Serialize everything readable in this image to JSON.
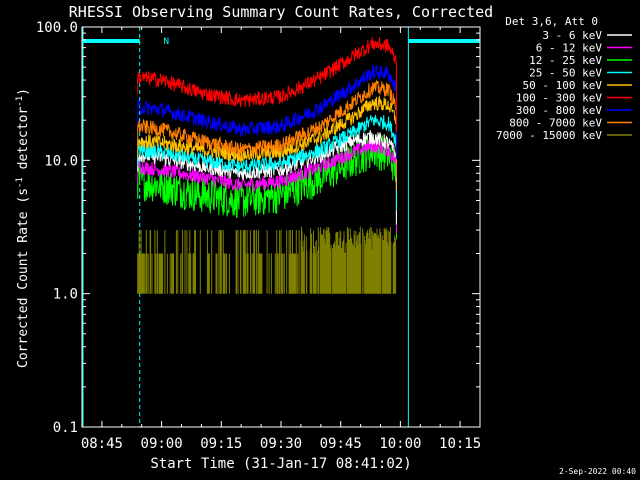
{
  "chart_data": {
    "type": "line",
    "title": "RHESSI Observing Summary Count Rates, Corrected",
    "xlabel": "Start Time (31-Jan-17 08:41:02)",
    "ylabel": "Corrected Count Rate (s",
    "ylabel_sup1": "-1",
    "ylabel_mid": " detector",
    "ylabel_sup2": "-1",
    "ylabel_end": ")",
    "yscale": "log",
    "ylim": [
      0.1,
      100.0
    ],
    "xlim_minutes": [
      -5.0,
      95.0
    ],
    "x_ticks": [
      {
        "label": "08:45",
        "minutes": 0
      },
      {
        "label": "09:00",
        "minutes": 15
      },
      {
        "label": "09:15",
        "minutes": 30
      },
      {
        "label": "09:30",
        "minutes": 45
      },
      {
        "label": "09:45",
        "minutes": 60
      },
      {
        "label": "10:00",
        "minutes": 75
      },
      {
        "label": "10:15",
        "minutes": 90
      }
    ],
    "y_ticks": [
      {
        "label": "0.1",
        "value": 0.1
      },
      {
        "label": "1.0",
        "value": 1.0
      },
      {
        "label": "10.0",
        "value": 10.0
      },
      {
        "label": "100.0",
        "value": 100.0
      }
    ],
    "legend_header": "Det 3,6, Att 0",
    "series": [
      {
        "name": "3 - 6 keV",
        "color": "#ffffff",
        "x": [
          9,
          15,
          25,
          35,
          45,
          55,
          63,
          68,
          72,
          74
        ],
        "values": [
          11,
          10.5,
          9,
          8,
          8.5,
          11,
          14,
          15,
          13.5,
          11
        ]
      },
      {
        "name": "6 - 12 keV",
        "color": "#ff00ff",
        "x": [
          9,
          15,
          25,
          35,
          45,
          55,
          63,
          68,
          72,
          74
        ],
        "values": [
          9,
          8.5,
          7.5,
          6.5,
          7,
          9,
          11.5,
          13,
          12,
          9.5
        ]
      },
      {
        "name": "12 - 25 keV",
        "color": "#00ff00",
        "x": [
          9,
          15,
          25,
          35,
          45,
          55,
          63,
          68,
          72,
          74
        ],
        "values": [
          7,
          6.5,
          5.5,
          5,
          5.5,
          7.5,
          10,
          12,
          11,
          8.5
        ]
      },
      {
        "name": "25 - 50 keV",
        "color": "#00ffff",
        "x": [
          9,
          15,
          25,
          35,
          45,
          55,
          63,
          68,
          72,
          74
        ],
        "values": [
          12,
          11.5,
          10,
          9,
          9.5,
          12,
          16,
          20,
          19,
          14
        ]
      },
      {
        "name": "50 - 100 keV",
        "color": "#ffc000",
        "x": [
          9,
          15,
          25,
          35,
          45,
          55,
          63,
          68,
          72,
          74
        ],
        "values": [
          14,
          13.5,
          12,
          11,
          11.5,
          15,
          21,
          27,
          26,
          20
        ]
      },
      {
        "name": "100 - 300 keV",
        "color": "#ff0000",
        "x": [
          9,
          15,
          25,
          35,
          45,
          55,
          63,
          68,
          72,
          74
        ],
        "values": [
          42,
          40,
          32,
          28,
          30,
          42,
          60,
          75,
          72,
          55
        ]
      },
      {
        "name": "300 - 800 keV",
        "color": "#0000ff",
        "x": [
          9,
          15,
          25,
          35,
          45,
          55,
          63,
          68,
          72,
          74
        ],
        "values": [
          25,
          24,
          20,
          17,
          18,
          25,
          36,
          46,
          45,
          34
        ]
      },
      {
        "name": "800 - 7000 keV",
        "color": "#ff8000",
        "x": [
          9,
          15,
          25,
          35,
          45,
          55,
          63,
          68,
          72,
          74
        ],
        "values": [
          18,
          17,
          14,
          12,
          13,
          18,
          27,
          35,
          34,
          25
        ]
      },
      {
        "name": "7000 - 15000 keV",
        "color": "#808000",
        "x": [
          9,
          15,
          25,
          35,
          45,
          55,
          63,
          68,
          72,
          74
        ],
        "values": [
          1.5,
          1.4,
          1.2,
          1.0,
          1.0,
          1.6,
          2.2,
          2.4,
          2.2,
          1.6
        ]
      }
    ],
    "spacecraft_night_minutes": [
      [
        -5,
        9.5
      ],
      [
        77,
        95
      ]
    ],
    "saa_label": "N",
    "saa_label_minutes": 15.5
  },
  "footer": {
    "date_stamp": "2-Sep-2022 00:40"
  }
}
